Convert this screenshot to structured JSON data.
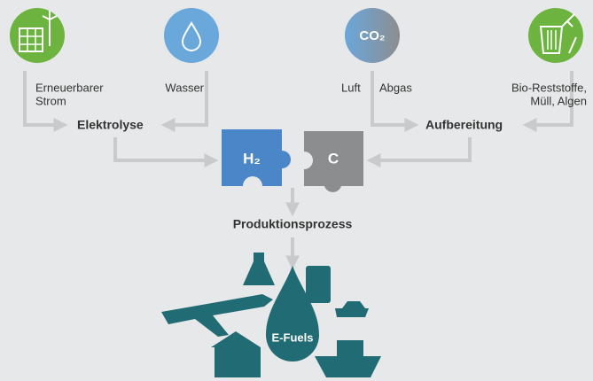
{
  "sources": {
    "strom": [
      "Erneuerbarer",
      "Strom"
    ],
    "wasser": "Wasser",
    "luft": "Luft",
    "abgas": "Abgas",
    "bio": [
      "Bio-Reststoffe,",
      "Müll, Algen"
    ],
    "co2": "CO₂"
  },
  "processes": {
    "elektrolyse": "Elektrolyse",
    "aufbereitung": "Aufbereitung",
    "h2": "H₂",
    "c": "C",
    "produktion": "Produktionsprozess"
  },
  "product": "E-Fuels"
}
